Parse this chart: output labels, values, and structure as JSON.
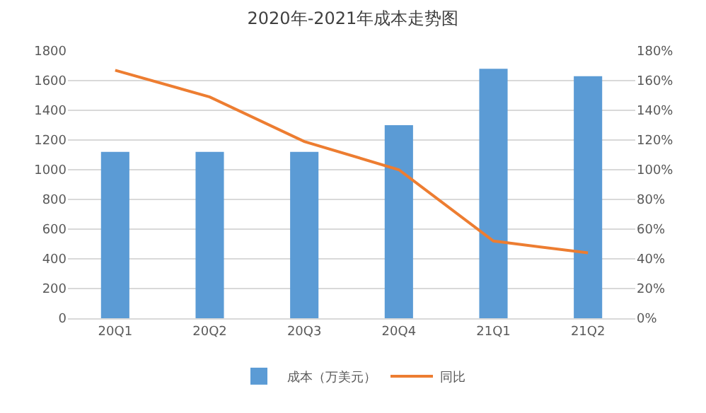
{
  "chart_data": {
    "type": "bar",
    "title": "2020年-2021年成本走势图",
    "categories": [
      "20Q1",
      "20Q2",
      "20Q3",
      "20Q4",
      "21Q1",
      "21Q2"
    ],
    "series": [
      {
        "name": "成本（万美元）",
        "color": "#5b9bd5",
        "values": [
          1120,
          1120,
          1120,
          1300,
          1680,
          1630
        ]
      },
      {
        "name": "同比",
        "type": "line",
        "axis": "y2",
        "color": "#ed7d31",
        "values": [
          167,
          149,
          119,
          100,
          52,
          44
        ]
      }
    ],
    "ylim": [
      0,
      1800
    ],
    "yticks": [
      0,
      200,
      400,
      600,
      800,
      1000,
      1200,
      1400,
      1600,
      1800
    ],
    "y2lim": [
      0,
      180
    ],
    "y2ticks": [
      {
        "value": 0,
        "label": "0%"
      },
      {
        "value": 20,
        "label": "20%"
      },
      {
        "value": 40,
        "label": "40%"
      },
      {
        "value": 60,
        "label": "60%"
      },
      {
        "value": 80,
        "label": "80%"
      },
      {
        "value": 100,
        "label": "100%"
      },
      {
        "value": 120,
        "label": "120%"
      },
      {
        "value": 140,
        "label": "140%"
      },
      {
        "value": 160,
        "label": "160%"
      },
      {
        "value": 180,
        "label": "180%"
      }
    ],
    "grid": "y",
    "legend": "bottom",
    "marker": "none",
    "line_style": "solid"
  }
}
